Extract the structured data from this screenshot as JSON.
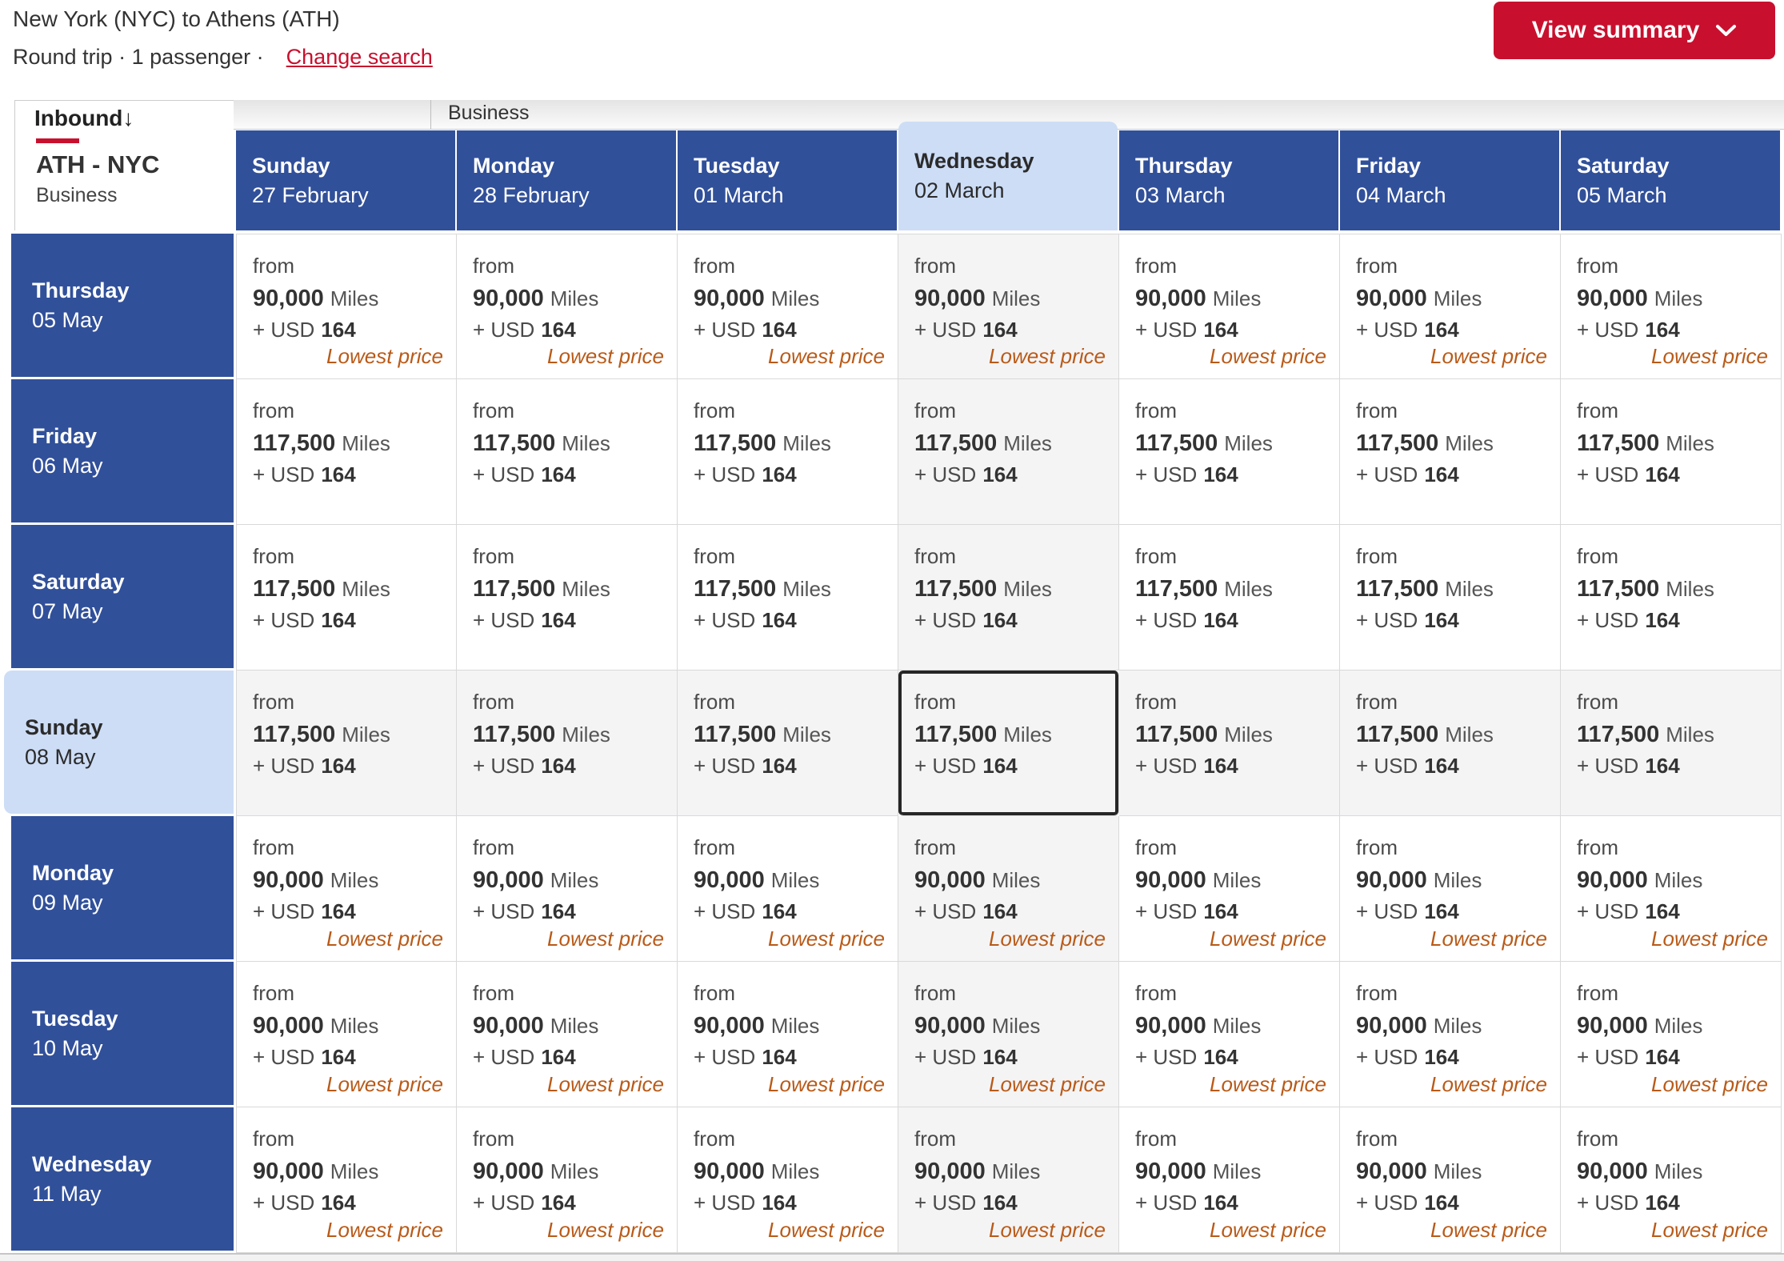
{
  "header": {
    "title": "New York (NYC) to Athens (ATH)",
    "subtitle": "Round trip · 1 passenger ·",
    "change_search_label": "Change search",
    "view_summary_label": "View summary"
  },
  "tabs": {
    "cabin": "Business"
  },
  "matrix": {
    "inbound_label": "Inbound",
    "inbound_arrow": "↓",
    "route": "ATH - NYC",
    "cabin": "Business",
    "labels": {
      "from": "from",
      "miles_suffix": "Miles",
      "plus_usd": "+  USD",
      "lowest": "Lowest price"
    },
    "selected": {
      "row": 3,
      "column": 3
    },
    "columns": [
      {
        "day": "Sunday",
        "date": "27 February"
      },
      {
        "day": "Monday",
        "date": "28 February"
      },
      {
        "day": "Tuesday",
        "date": "01 March"
      },
      {
        "day": "Wednesday",
        "date": "02 March"
      },
      {
        "day": "Thursday",
        "date": "03 March"
      },
      {
        "day": "Friday",
        "date": "04 March"
      },
      {
        "day": "Saturday",
        "date": "05 March"
      }
    ],
    "rows": [
      {
        "day": "Thursday",
        "date": "05 May",
        "cells": [
          {
            "miles": "90,000",
            "usd": "164",
            "lowest_price": true
          },
          {
            "miles": "90,000",
            "usd": "164",
            "lowest_price": true
          },
          {
            "miles": "90,000",
            "usd": "164",
            "lowest_price": true
          },
          {
            "miles": "90,000",
            "usd": "164",
            "lowest_price": true
          },
          {
            "miles": "90,000",
            "usd": "164",
            "lowest_price": true
          },
          {
            "miles": "90,000",
            "usd": "164",
            "lowest_price": true
          },
          {
            "miles": "90,000",
            "usd": "164",
            "lowest_price": true
          }
        ]
      },
      {
        "day": "Friday",
        "date": "06 May",
        "cells": [
          {
            "miles": "117,500",
            "usd": "164",
            "lowest_price": false
          },
          {
            "miles": "117,500",
            "usd": "164",
            "lowest_price": false
          },
          {
            "miles": "117,500",
            "usd": "164",
            "lowest_price": false
          },
          {
            "miles": "117,500",
            "usd": "164",
            "lowest_price": false
          },
          {
            "miles": "117,500",
            "usd": "164",
            "lowest_price": false
          },
          {
            "miles": "117,500",
            "usd": "164",
            "lowest_price": false
          },
          {
            "miles": "117,500",
            "usd": "164",
            "lowest_price": false
          }
        ]
      },
      {
        "day": "Saturday",
        "date": "07 May",
        "cells": [
          {
            "miles": "117,500",
            "usd": "164",
            "lowest_price": false
          },
          {
            "miles": "117,500",
            "usd": "164",
            "lowest_price": false
          },
          {
            "miles": "117,500",
            "usd": "164",
            "lowest_price": false
          },
          {
            "miles": "117,500",
            "usd": "164",
            "lowest_price": false
          },
          {
            "miles": "117,500",
            "usd": "164",
            "lowest_price": false
          },
          {
            "miles": "117,500",
            "usd": "164",
            "lowest_price": false
          },
          {
            "miles": "117,500",
            "usd": "164",
            "lowest_price": false
          }
        ]
      },
      {
        "day": "Sunday",
        "date": "08 May",
        "cells": [
          {
            "miles": "117,500",
            "usd": "164",
            "lowest_price": false
          },
          {
            "miles": "117,500",
            "usd": "164",
            "lowest_price": false
          },
          {
            "miles": "117,500",
            "usd": "164",
            "lowest_price": false
          },
          {
            "miles": "117,500",
            "usd": "164",
            "lowest_price": false
          },
          {
            "miles": "117,500",
            "usd": "164",
            "lowest_price": false
          },
          {
            "miles": "117,500",
            "usd": "164",
            "lowest_price": false
          },
          {
            "miles": "117,500",
            "usd": "164",
            "lowest_price": false
          }
        ]
      },
      {
        "day": "Monday",
        "date": "09 May",
        "cells": [
          {
            "miles": "90,000",
            "usd": "164",
            "lowest_price": true
          },
          {
            "miles": "90,000",
            "usd": "164",
            "lowest_price": true
          },
          {
            "miles": "90,000",
            "usd": "164",
            "lowest_price": true
          },
          {
            "miles": "90,000",
            "usd": "164",
            "lowest_price": true
          },
          {
            "miles": "90,000",
            "usd": "164",
            "lowest_price": true
          },
          {
            "miles": "90,000",
            "usd": "164",
            "lowest_price": true
          },
          {
            "miles": "90,000",
            "usd": "164",
            "lowest_price": true
          }
        ]
      },
      {
        "day": "Tuesday",
        "date": "10 May",
        "cells": [
          {
            "miles": "90,000",
            "usd": "164",
            "lowest_price": true
          },
          {
            "miles": "90,000",
            "usd": "164",
            "lowest_price": true
          },
          {
            "miles": "90,000",
            "usd": "164",
            "lowest_price": true
          },
          {
            "miles": "90,000",
            "usd": "164",
            "lowest_price": true
          },
          {
            "miles": "90,000",
            "usd": "164",
            "lowest_price": true
          },
          {
            "miles": "90,000",
            "usd": "164",
            "lowest_price": true
          },
          {
            "miles": "90,000",
            "usd": "164",
            "lowest_price": true
          }
        ]
      },
      {
        "day": "Wednesday",
        "date": "11 May",
        "cells": [
          {
            "miles": "90,000",
            "usd": "164",
            "lowest_price": true
          },
          {
            "miles": "90,000",
            "usd": "164",
            "lowest_price": true
          },
          {
            "miles": "90,000",
            "usd": "164",
            "lowest_price": true
          },
          {
            "miles": "90,000",
            "usd": "164",
            "lowest_price": true
          },
          {
            "miles": "90,000",
            "usd": "164",
            "lowest_price": true
          },
          {
            "miles": "90,000",
            "usd": "164",
            "lowest_price": true
          },
          {
            "miles": "90,000",
            "usd": "164",
            "lowest_price": true
          }
        ]
      }
    ]
  },
  "colors": {
    "header_blue": "#31509a",
    "selected_light_blue": "#cdddf6",
    "accent_red": "#c8102e",
    "lowest_price_orange": "#b95a18",
    "highlight_cell_gray": "#f4f4f5"
  }
}
